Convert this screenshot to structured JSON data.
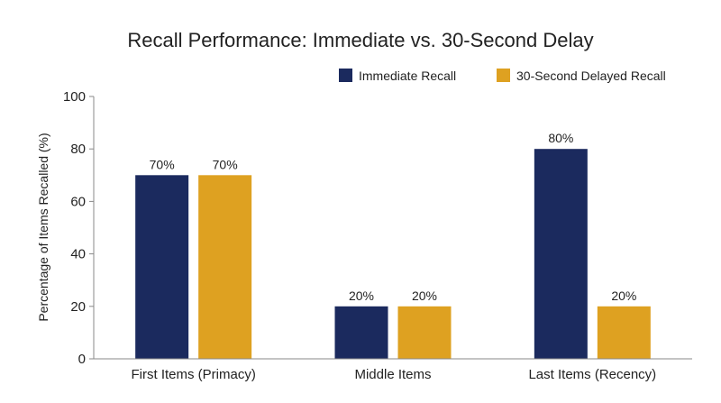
{
  "chart_data": {
    "type": "bar",
    "title": "Recall Performance: Immediate vs. 30-Second Delay",
    "xlabel": "",
    "ylabel": "Percentage of Items Recalled (%)",
    "categories": [
      "First Items (Primacy)",
      "Middle Items",
      "Last Items (Recency)"
    ],
    "series": [
      {
        "name": "Immediate Recall",
        "values": [
          70,
          20,
          80
        ],
        "labels": [
          "70%",
          "20%",
          "80%"
        ],
        "color": "#1b2a5e"
      },
      {
        "name": "30-Second Delayed Recall",
        "values": [
          70,
          20,
          20
        ],
        "labels": [
          "70%",
          "20%",
          "20%"
        ],
        "color": "#dea121"
      }
    ],
    "ylim": [
      0,
      100
    ],
    "yticks": [
      0,
      20,
      40,
      60,
      80,
      100
    ],
    "grid": false,
    "legend_position": "top-right"
  }
}
